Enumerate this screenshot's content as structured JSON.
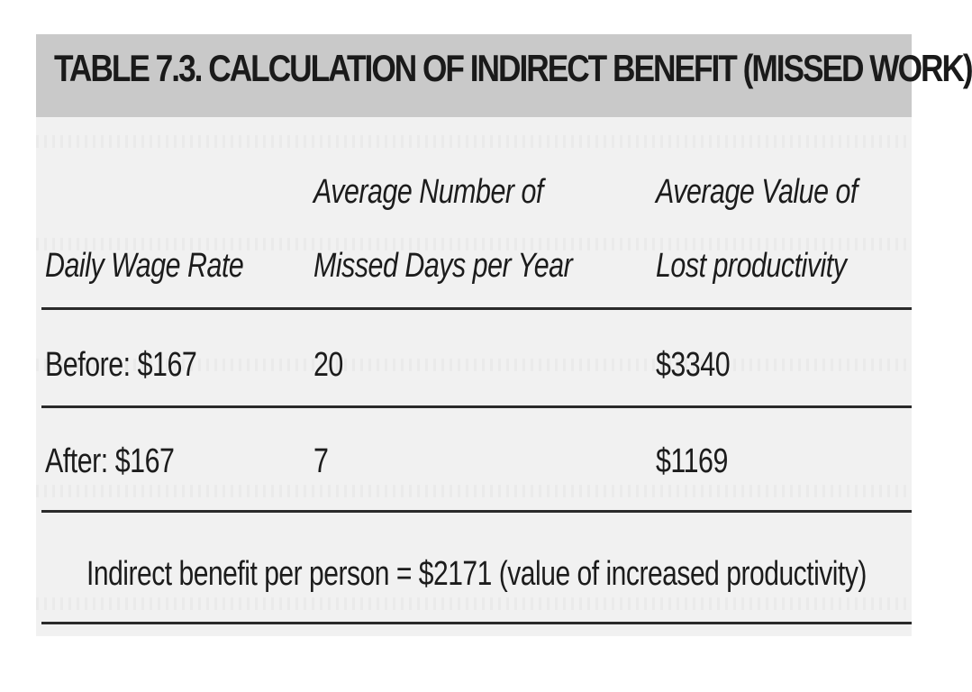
{
  "table": {
    "title": "TABLE 7.3. CALCULATION OF INDIRECT BENEFIT (MISSED WORK)",
    "headers": [
      {
        "line1": "",
        "line2": "Daily Wage Rate"
      },
      {
        "line1": "Average Number of",
        "line2": "Missed Days per Year"
      },
      {
        "line1": "Average Value of",
        "line2": "Lost productivity"
      }
    ],
    "rows": [
      {
        "wage": "Before: $167",
        "days": "20",
        "value": "$3340"
      },
      {
        "wage": "After: $167",
        "days": "7",
        "value": "$1169"
      }
    ],
    "footer": "Indirect benefit per person = $2171 (value of increased productivity)"
  }
}
